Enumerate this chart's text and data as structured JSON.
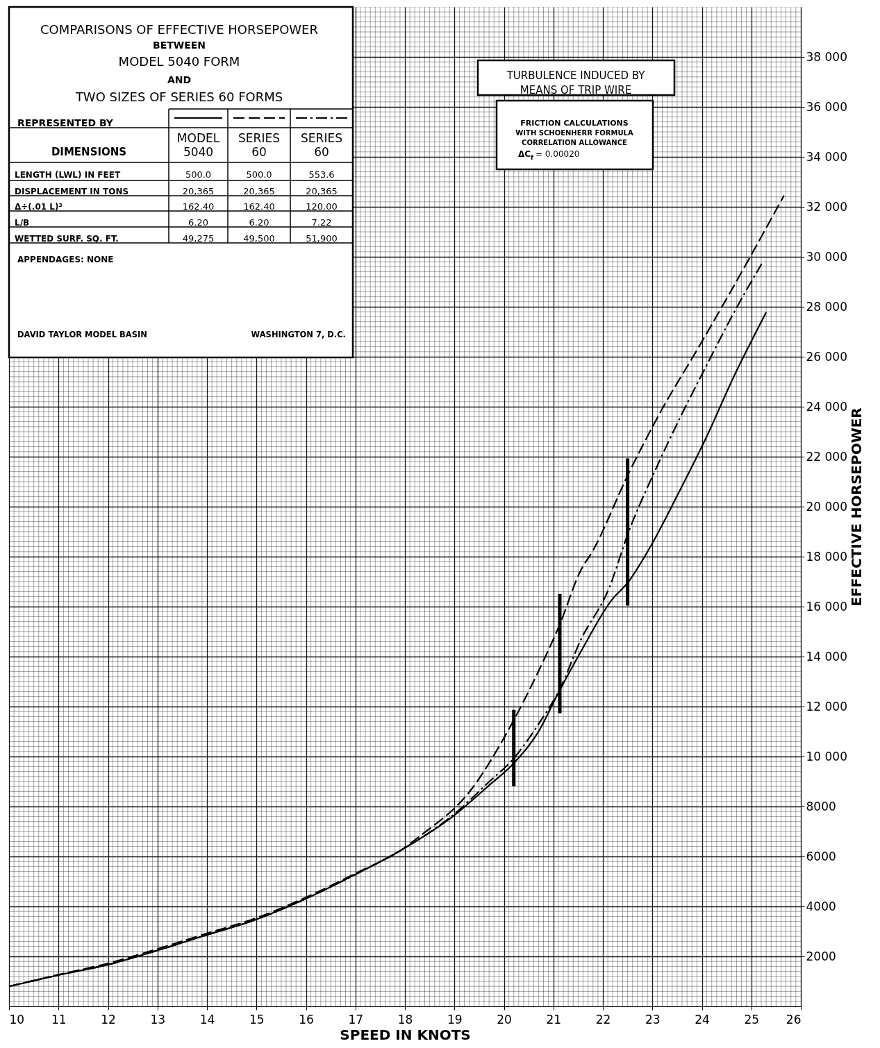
{
  "chart_data": {
    "type": "line",
    "title": "COMPARISONS OF EFFECTIVE HORSEPOWER\nBETWEEN\nMODEL 5040 FORM\nAND\nTWO SIZES OF SERIES 60 FORMS",
    "xlabel": "SPEED IN KNOTS",
    "ylabel": "EFFECTIVE HORSEPOWER",
    "legend_title": "REPRESENTED BY",
    "xlim": [
      10,
      26
    ],
    "xticks": [
      10,
      11,
      12,
      13,
      14,
      15,
      16,
      17,
      18,
      19,
      20,
      21,
      22,
      23,
      24,
      25,
      26
    ],
    "ylim": [
      0,
      40000
    ],
    "yticks": [
      2000,
      4000,
      6000,
      8000,
      {
        "value": 10000,
        "label": "10 000"
      },
      {
        "value": 12000,
        "label": "12 000"
      },
      {
        "value": 14000,
        "label": "14 000"
      },
      {
        "value": 16000,
        "label": "16 000"
      },
      {
        "value": 18000,
        "label": "18 000"
      },
      {
        "value": 20000,
        "label": "20 000"
      },
      {
        "value": 22000,
        "label": "22 000"
      },
      {
        "value": 24000,
        "label": "24 000"
      },
      {
        "value": 26000,
        "label": "26 000"
      },
      {
        "value": 28000,
        "label": "28 000"
      },
      {
        "value": 30000,
        "label": "30 000"
      },
      {
        "value": 32000,
        "label": "32 000"
      },
      {
        "value": 34000,
        "label": "34 000"
      },
      {
        "value": 36000,
        "label": "36 000"
      },
      {
        "value": 38000,
        "label": "38 000"
      }
    ],
    "grid": true,
    "legend": "top left",
    "marker": "none",
    "series": [
      {
        "name": "MODEL 5040",
        "color": "#000000",
        "line_style": "solid",
        "x": [
          10,
          11,
          12,
          13,
          14,
          15,
          16,
          17,
          18,
          19,
          19.68,
          20.2,
          20.7,
          21.09,
          21.55,
          22.17,
          22.52,
          22.97,
          23.53,
          24.09,
          24.65,
          25.3
        ],
        "values": [
          800,
          1250,
          1670,
          2240,
          2860,
          3480,
          4310,
          5280,
          6340,
          7650,
          8810,
          9730,
          11000,
          12510,
          14180,
          16240,
          17000,
          18430,
          20550,
          22770,
          25220,
          27780
        ]
      },
      {
        "name": "SERIES 60",
        "color": "#000000",
        "line_style": "dashed",
        "x": [
          10,
          11,
          12,
          13,
          14,
          15,
          16,
          17,
          18,
          18.28,
          19.36,
          20.06,
          20.71,
          21.13,
          21.55,
          21.79,
          22.52,
          23.19,
          23.92,
          24.6,
          25.66
        ],
        "values": [
          800,
          1270,
          1720,
          2300,
          2920,
          3540,
          4360,
          5320,
          6360,
          6780,
          8730,
          10950,
          13460,
          15290,
          17440,
          18210,
          21330,
          23880,
          26330,
          28670,
          32450
        ]
      },
      {
        "name": "SERIES 60",
        "color": "#000000",
        "line_style": "dashdot",
        "x": [
          10,
          11,
          12,
          13,
          14,
          15,
          16,
          17,
          18,
          19,
          19.68,
          20.2,
          20.7,
          21.13,
          21.55,
          22.13,
          22.52,
          23.08,
          23.53,
          24.04,
          24.71,
          25.21
        ],
        "values": [
          800,
          1250,
          1670,
          2240,
          2860,
          3480,
          4310,
          5280,
          6340,
          7700,
          8950,
          9930,
          11300,
          12700,
          14650,
          16760,
          18990,
          21550,
          23440,
          25440,
          27990,
          29720
        ]
      },
      {
        "color": "#000000",
        "line_style": "solid",
        "x": [
          20.2,
          20.2
        ],
        "values": [
          8810,
          11870
        ]
      },
      {
        "color": "#000000",
        "line_style": "solid",
        "x": [
          21.13,
          21.13
        ],
        "values": [
          11730,
          16510
        ]
      },
      {
        "color": "#000000",
        "line_style": "solid",
        "x": [
          22.5,
          22.5
        ],
        "values": [
          16040,
          21930
        ]
      }
    ],
    "annotations": [
      "DIMENSIONS",
      "LENGTH (LWL) IN FEET",
      "500.0",
      "500.0",
      "553.6",
      "DISPLACEMENT IN TONS",
      "20,365",
      "20,365",
      "20,365",
      "Δ÷(.01 L)³",
      "162.40",
      "162.40",
      "120.00",
      "L/B",
      "6.20",
      "6.20",
      "7.22",
      "WETTED SURF. SQ. FT.",
      "49,275",
      "49,500",
      "51,900",
      "APPENDAGES: NONE",
      "DAVID TAYLOR MODEL BASIN",
      "WASHINGTON 7, D.C.",
      "TURBULENCE INDUCED BY\nMEANS OF TRIP WIRE",
      "FRICTION CALCULATIONS\nWITH SCHOENHERR FORMULA\nCORRELATION ALLOWANCE\nΔC$_{f}$ = 0.00020"
    ]
  }
}
